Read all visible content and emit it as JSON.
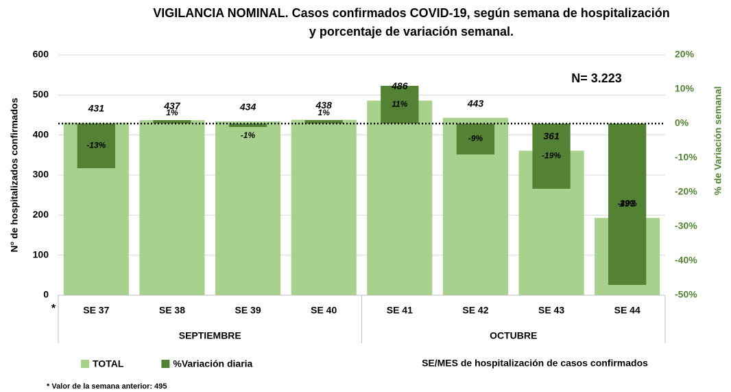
{
  "chart_data": {
    "type": "bar",
    "title": [
      "VIGILANCIA NOMINAL. Casos confirmados COVID-19, según semana de hospitalización",
      "y porcentaje de variación semanal."
    ],
    "categories": [
      "SE 37",
      "SE 38",
      "SE 39",
      "SE 40",
      "SE 41",
      "SE 42",
      "SE 43",
      "SE 44"
    ],
    "groups": [
      "SEPTIEMBRE",
      "OCTUBRE"
    ],
    "series": [
      {
        "name": "TOTAL",
        "color": "#a9d18e",
        "values": [
          431,
          437,
          434,
          438,
          486,
          443,
          361,
          193
        ]
      },
      {
        "name": "%Variación diaria",
        "color": "#548235",
        "axis": "y2",
        "values": [
          -13,
          1,
          -1,
          1,
          11,
          -9,
          -19,
          -47
        ],
        "value_labels": [
          "-13%",
          "1%",
          "-1%",
          "1%",
          "11%",
          "-9%",
          "-19%",
          "-47%"
        ]
      }
    ],
    "ylim": [
      0,
      600
    ],
    "yticks": [
      0,
      100,
      200,
      300,
      400,
      500,
      600
    ],
    "y2lim": [
      -50,
      20
    ],
    "y2ticks": [
      {
        "value": -50,
        "label": "-50%"
      },
      {
        "value": -40,
        "label": "-40%"
      },
      {
        "value": -30,
        "label": "-30%"
      },
      {
        "value": -20,
        "label": "-20%"
      },
      {
        "value": -10,
        "label": "-10%"
      },
      {
        "value": 0,
        "label": "0%"
      },
      {
        "value": 10,
        "label": "10%"
      },
      {
        "value": 20,
        "label": "20%"
      }
    ],
    "ylabel": "N° de hospitalizados confirmados",
    "y2label": "% de Variación semanal",
    "xlabel": "SE/MES de hospitalización de casos confirmados",
    "annotations": [
      "N= 3.223",
      "*",
      "* Valor de la semana anterior: 495"
    ],
    "grid": true
  }
}
